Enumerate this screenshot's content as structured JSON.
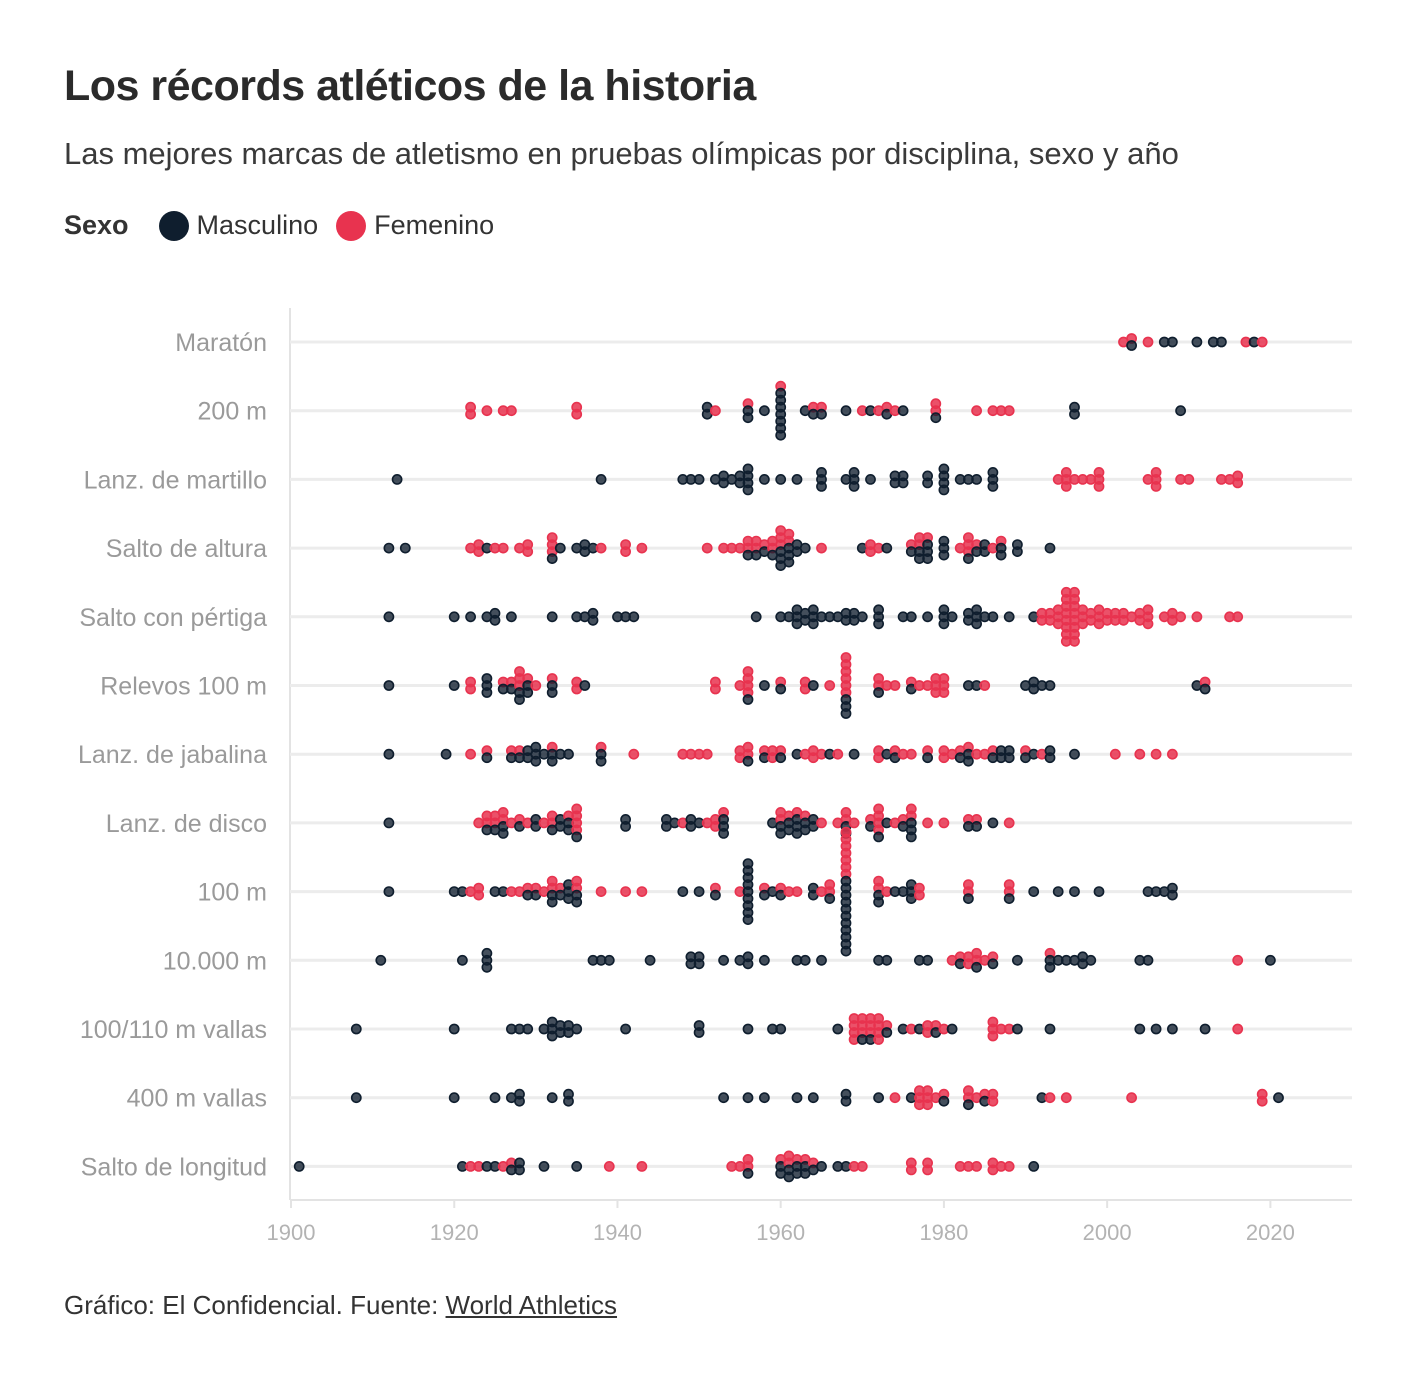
{
  "title": "Los récords atléticos de la historia",
  "subtitle": "Las mejores marcas de atletismo en pruebas olímpicas por disciplina, sexo y año",
  "legend": {
    "title": "Sexo",
    "items": [
      {
        "label": "Masculino",
        "color": "#0f1e2e"
      },
      {
        "label": "Femenino",
        "color": "#e8334f"
      }
    ]
  },
  "footer": {
    "text": "Gráfico: El Confidencial. Fuente: ",
    "link_label": "World Athletics"
  },
  "chart_data": {
    "type": "scatter",
    "subtype": "beeswarm",
    "title": "Los récords atléticos de la historia",
    "xlabel": "",
    "ylabel": "",
    "xlim": [
      1900,
      2030
    ],
    "x_ticks": [
      1900,
      1920,
      1940,
      1960,
      1980,
      2000,
      2020
    ],
    "grid": true,
    "colors": {
      "M": "#0f1e2e",
      "F": "#e8334f"
    },
    "categories": [
      "Maratón",
      "200 m",
      "Lanz. de martillo",
      "Salto de altura",
      "Salto con pértiga",
      "Relevos 100 m",
      "Lanz. de jabalina",
      "Lanz. de disco",
      "100 m",
      "10.000 m",
      "100/110 m vallas",
      "400 m vallas",
      "Salto de longitud"
    ],
    "series": [
      {
        "event": "Maratón",
        "M": [
          2003,
          2007,
          2008,
          2011,
          2013,
          2014,
          2018
        ],
        "F": [
          2002,
          2003,
          2005,
          2017,
          2019
        ]
      },
      {
        "event": "200 m",
        "M": [
          1951,
          1951,
          1956,
          1956,
          1958,
          1960,
          1960,
          1960,
          1960,
          1960,
          1960,
          1960,
          1963,
          1964,
          1965,
          1968,
          1971,
          1973,
          1975,
          1979,
          1996,
          1996,
          2009
        ],
        "F": [
          1922,
          1922,
          1924,
          1926,
          1927,
          1935,
          1935,
          1952,
          1956,
          1960,
          1964,
          1965,
          1970,
          1972,
          1973,
          1974,
          1979,
          1979,
          1984,
          1986,
          1987,
          1988
        ]
      },
      {
        "event": "Lanz. de martillo",
        "M": [
          1913,
          1938,
          1948,
          1949,
          1950,
          1952,
          1953,
          1953,
          1954,
          1955,
          1955,
          1956,
          1956,
          1956,
          1956,
          1958,
          1960,
          1962,
          1965,
          1965,
          1965,
          1968,
          1969,
          1969,
          1969,
          1971,
          1974,
          1974,
          1975,
          1975,
          1978,
          1978,
          1980,
          1980,
          1980,
          1980,
          1982,
          1983,
          1984,
          1986,
          1986,
          1986
        ],
        "F": [
          1994,
          1995,
          1995,
          1995,
          1996,
          1997,
          1998,
          1999,
          1999,
          1999,
          2005,
          2006,
          2006,
          2006,
          2009,
          2010,
          2014,
          2015,
          2016,
          2016
        ]
      },
      {
        "event": "Salto de altura",
        "M": [
          1912,
          1914,
          1924,
          1932,
          1933,
          1935,
          1936,
          1936,
          1937,
          1956,
          1957,
          1958,
          1959,
          1960,
          1960,
          1960,
          1961,
          1961,
          1961,
          1962,
          1962,
          1963,
          1970,
          1973,
          1976,
          1977,
          1977,
          1978,
          1978,
          1978,
          1980,
          1980,
          1980,
          1983,
          1984,
          1985,
          1985,
          1987,
          1987,
          1989,
          1989,
          1993
        ],
        "F": [
          1922,
          1923,
          1923,
          1925,
          1926,
          1928,
          1929,
          1929,
          1932,
          1932,
          1932,
          1938,
          1941,
          1941,
          1943,
          1951,
          1953,
          1954,
          1955,
          1956,
          1956,
          1957,
          1957,
          1958,
          1959,
          1959,
          1960,
          1960,
          1960,
          1961,
          1961,
          1965,
          1971,
          1971,
          1972,
          1976,
          1977,
          1977,
          1978,
          1982,
          1983,
          1983,
          1983,
          1984,
          1986,
          1987
        ]
      },
      {
        "event": "Salto con pértiga",
        "M": [
          1912,
          1920,
          1922,
          1924,
          1925,
          1925,
          1927,
          1932,
          1935,
          1936,
          1937,
          1937,
          1940,
          1941,
          1942,
          1957,
          1960,
          1961,
          1962,
          1962,
          1962,
          1963,
          1963,
          1964,
          1964,
          1964,
          1965,
          1966,
          1967,
          1968,
          1968,
          1969,
          1969,
          1970,
          1972,
          1972,
          1972,
          1975,
          1976,
          1978,
          1980,
          1980,
          1980,
          1981,
          1983,
          1983,
          1984,
          1984,
          1984,
          1985,
          1986,
          1988,
          1991
        ],
        "F": [
          1992,
          1992,
          1993,
          1993,
          1994,
          1994,
          1994,
          1995,
          1995,
          1995,
          1995,
          1995,
          1995,
          1995,
          1995,
          1996,
          1996,
          1996,
          1996,
          1996,
          1996,
          1996,
          1996,
          1997,
          1997,
          1997,
          1998,
          1998,
          1999,
          1999,
          1999,
          2000,
          2000,
          2001,
          2001,
          2002,
          2002,
          2003,
          2004,
          2004,
          2005,
          2005,
          2005,
          2007,
          2008,
          2008,
          2009,
          2011,
          2015,
          2016
        ]
      },
      {
        "event": "Relevos 100 m",
        "M": [
          1912,
          1920,
          1924,
          1924,
          1924,
          1926,
          1927,
          1928,
          1928,
          1929,
          1929,
          1932,
          1932,
          1936,
          1956,
          1958,
          1960,
          1964,
          1968,
          1968,
          1968,
          1972,
          1976,
          1983,
          1984,
          1990,
          1991,
          1991,
          1992,
          1993,
          2011,
          2012
        ],
        "F": [
          1922,
          1922,
          1926,
          1927,
          1928,
          1928,
          1928,
          1929,
          1930,
          1932,
          1935,
          1935,
          1952,
          1952,
          1955,
          1956,
          1956,
          1956,
          1956,
          1960,
          1963,
          1963,
          1966,
          1968,
          1968,
          1968,
          1968,
          1968,
          1968,
          1972,
          1972,
          1973,
          1974,
          1976,
          1977,
          1978,
          1979,
          1979,
          1979,
          1980,
          1980,
          1980,
          1985,
          2012
        ]
      },
      {
        "event": "Lanz. de jabalina",
        "M": [
          1912,
          1919,
          1924,
          1927,
          1928,
          1929,
          1929,
          1930,
          1930,
          1930,
          1931,
          1932,
          1932,
          1933,
          1934,
          1938,
          1938,
          1956,
          1958,
          1960,
          1962,
          1966,
          1969,
          1973,
          1974,
          1978,
          1982,
          1983,
          1983,
          1986,
          1987,
          1987,
          1988,
          1988,
          1990,
          1991,
          1993,
          1993,
          1996
        ],
        "F": [
          1922,
          1924,
          1927,
          1928,
          1932,
          1938,
          1942,
          1948,
          1949,
          1950,
          1951,
          1955,
          1955,
          1956,
          1956,
          1958,
          1959,
          1959,
          1960,
          1963,
          1964,
          1964,
          1965,
          1967,
          1972,
          1972,
          1974,
          1975,
          1976,
          1978,
          1980,
          1980,
          1981,
          1982,
          1983,
          1984,
          1985,
          1986,
          1990,
          1992,
          2001,
          2004,
          2006,
          2008
        ]
      },
      {
        "event": "Lanz. de disco",
        "M": [
          1912,
          1924,
          1925,
          1926,
          1926,
          1928,
          1930,
          1930,
          1932,
          1933,
          1933,
          1934,
          1934,
          1935,
          1941,
          1941,
          1946,
          1946,
          1947,
          1949,
          1949,
          1950,
          1953,
          1953,
          1953,
          1959,
          1960,
          1960,
          1961,
          1961,
          1962,
          1962,
          1962,
          1963,
          1963,
          1964,
          1964,
          1968,
          1968,
          1971,
          1972,
          1973,
          1975,
          1976,
          1976,
          1976,
          1983,
          1984,
          1986
        ],
        "F": [
          1923,
          1924,
          1924,
          1925,
          1925,
          1926,
          1926,
          1927,
          1928,
          1929,
          1931,
          1932,
          1932,
          1934,
          1935,
          1935,
          1935,
          1935,
          1948,
          1951,
          1952,
          1952,
          1953,
          1960,
          1960,
          1961,
          1962,
          1963,
          1965,
          1967,
          1968,
          1968,
          1969,
          1971,
          1972,
          1972,
          1972,
          1972,
          1974,
          1975,
          1976,
          1976,
          1978,
          1980,
          1983,
          1984,
          1988
        ]
      },
      {
        "event": "100 m",
        "M": [
          1912,
          1920,
          1921,
          1925,
          1926,
          1929,
          1930,
          1932,
          1932,
          1933,
          1934,
          1934,
          1934,
          1935,
          1935,
          1948,
          1950,
          1952,
          1956,
          1956,
          1956,
          1956,
          1956,
          1956,
          1956,
          1956,
          1956,
          1958,
          1959,
          1960,
          1964,
          1964,
          1966,
          1968,
          1968,
          1968,
          1968,
          1968,
          1968,
          1968,
          1968,
          1968,
          1968,
          1968,
          1972,
          1972,
          1974,
          1975,
          1976,
          1976,
          1976,
          1983,
          1988,
          1991,
          1994,
          1996,
          1999,
          2005,
          2006,
          2007,
          2008,
          2008
        ],
        "F": [
          1922,
          1923,
          1923,
          1927,
          1928,
          1929,
          1930,
          1931,
          1932,
          1932,
          1933,
          1935,
          1935,
          1938,
          1941,
          1943,
          1952,
          1955,
          1958,
          1960,
          1961,
          1962,
          1965,
          1966,
          1966,
          1968,
          1968,
          1968,
          1968,
          1968,
          1968,
          1968,
          1972,
          1972,
          1973,
          1977,
          1977,
          1983,
          1983,
          1988,
          1988
        ]
      },
      {
        "event": "10.000 m",
        "M": [
          1911,
          1921,
          1924,
          1924,
          1924,
          1937,
          1938,
          1939,
          1944,
          1949,
          1949,
          1950,
          1950,
          1953,
          1955,
          1956,
          1956,
          1958,
          1962,
          1963,
          1965,
          1972,
          1973,
          1977,
          1978,
          1982,
          1984,
          1986,
          1989,
          1993,
          1993,
          1994,
          1995,
          1996,
          1997,
          1997,
          1998,
          2004,
          2005,
          2020
        ],
        "F": [
          1981,
          1982,
          1983,
          1983,
          1984,
          1984,
          1985,
          1986,
          1993,
          2016
        ]
      },
      {
        "event": "100/110 m vallas",
        "M": [
          1908,
          1920,
          1927,
          1928,
          1929,
          1931,
          1932,
          1932,
          1932,
          1933,
          1933,
          1934,
          1934,
          1935,
          1941,
          1950,
          1950,
          1956,
          1959,
          1960,
          1967,
          1970,
          1971,
          1973,
          1975,
          1977,
          1979,
          1981,
          1989,
          1993,
          2004,
          2006,
          2008,
          2012
        ],
        "F": [
          1969,
          1969,
          1969,
          1969,
          1970,
          1970,
          1970,
          1971,
          1971,
          1971,
          1972,
          1972,
          1972,
          1972,
          1973,
          1976,
          1978,
          1978,
          1979,
          1980,
          1986,
          1986,
          1986,
          1987,
          1988,
          2016
        ]
      },
      {
        "event": "400 m vallas",
        "M": [
          1908,
          1920,
          1925,
          1927,
          1928,
          1928,
          1932,
          1934,
          1934,
          1953,
          1956,
          1958,
          1962,
          1964,
          1968,
          1968,
          1972,
          1976,
          1980,
          1983,
          1985,
          1992,
          2021
        ],
        "F": [
          1974,
          1977,
          1977,
          1977,
          1978,
          1978,
          1978,
          1979,
          1980,
          1983,
          1983,
          1984,
          1985,
          1986,
          1986,
          1993,
          1995,
          2003,
          2019,
          2019
        ]
      },
      {
        "event": "Salto de longitud",
        "M": [
          1901,
          1921,
          1924,
          1925,
          1927,
          1928,
          1928,
          1931,
          1935,
          1956,
          1960,
          1960,
          1961,
          1961,
          1962,
          1962,
          1963,
          1963,
          1964,
          1965,
          1967,
          1968,
          1991
        ],
        "F": [
          1922,
          1923,
          1926,
          1927,
          1939,
          1943,
          1954,
          1955,
          1956,
          1956,
          1960,
          1961,
          1961,
          1962,
          1963,
          1964,
          1969,
          1970,
          1976,
          1976,
          1978,
          1978,
          1982,
          1983,
          1984,
          1986,
          1986,
          1987,
          1988
        ]
      }
    ]
  }
}
